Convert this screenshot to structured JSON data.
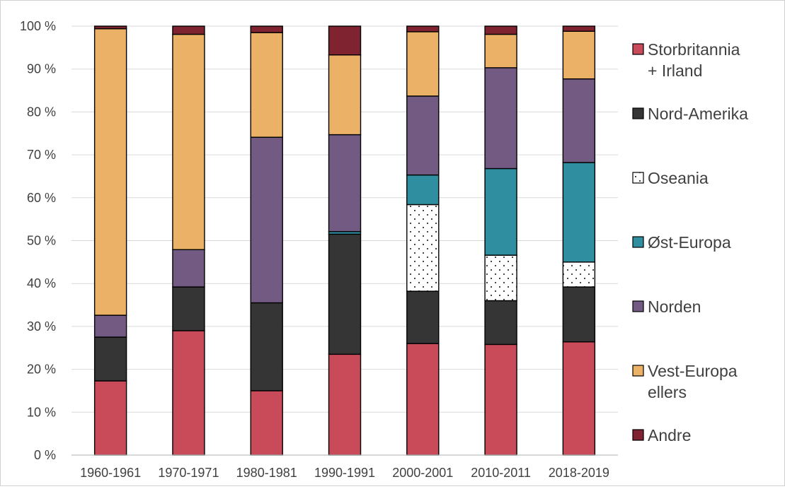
{
  "chart_data": {
    "type": "bar",
    "stacked": true,
    "percent_stacked": true,
    "title": "",
    "xlabel": "",
    "ylabel": "",
    "ylim": [
      0,
      100
    ],
    "y_ticks": [
      "0 %",
      "10 %",
      "20 %",
      "30 %",
      "40 %",
      "50 %",
      "60 %",
      "70 %",
      "80 %",
      "90 %",
      "100 %"
    ],
    "grid": true,
    "legend_position": "right",
    "categories": [
      "1960-1961",
      "1970-1971",
      "1980-1981",
      "1990-1991",
      "2000-2001",
      "2010-2011",
      "2018-2019"
    ],
    "series": [
      {
        "name": "Storbritannia + Irland",
        "legend_lines": [
          "Storbritannia",
          "+ Irland"
        ],
        "color": "#c94a59",
        "values": [
          17.3,
          29.0,
          15.0,
          23.5,
          26.0,
          25.8,
          26.4
        ]
      },
      {
        "name": "Nord-Amerika",
        "legend_lines": [
          "Nord-Amerika"
        ],
        "color": "#353535",
        "values": [
          10.2,
          10.2,
          20.5,
          28.0,
          12.2,
          10.2,
          12.8
        ]
      },
      {
        "name": "Oseania",
        "legend_lines": [
          "Oseania"
        ],
        "color": "#ffffff",
        "pattern": "dots",
        "values": [
          0,
          0,
          0,
          0,
          20.2,
          10.6,
          5.8
        ]
      },
      {
        "name": "Øst-Europa",
        "legend_lines": [
          "Øst-Europa"
        ],
        "color": "#2f8fa1",
        "values": [
          0,
          0,
          0,
          0.6,
          6.9,
          20.2,
          23.2
        ]
      },
      {
        "name": "Norden",
        "legend_lines": [
          "Norden"
        ],
        "color": "#735a82",
        "values": [
          5.1,
          8.7,
          38.6,
          22.6,
          18.4,
          23.5,
          19.5
        ]
      },
      {
        "name": "Vest-Europa ellers",
        "legend_lines": [
          "Vest-Europa",
          "ellers"
        ],
        "color": "#ebb167",
        "values": [
          66.8,
          50.2,
          24.4,
          18.6,
          15.0,
          7.8,
          11.1
        ]
      },
      {
        "name": "Andre",
        "legend_lines": [
          "Andre"
        ],
        "color": "#7f2330",
        "values": [
          0.6,
          1.9,
          1.5,
          6.7,
          1.3,
          1.9,
          1.2
        ]
      }
    ]
  }
}
